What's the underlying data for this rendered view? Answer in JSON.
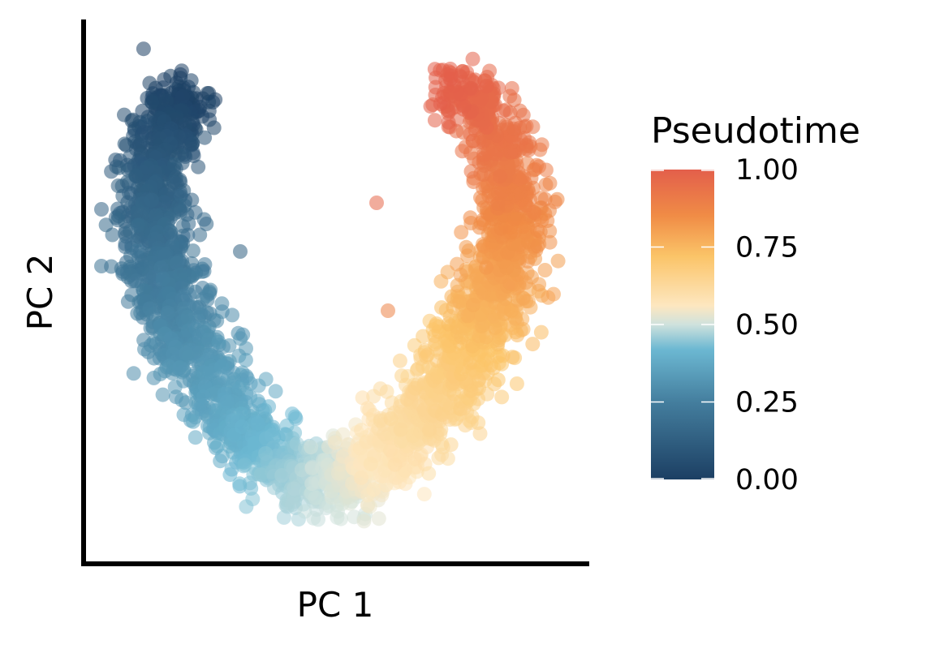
{
  "chart_data": {
    "type": "scatter",
    "title": "",
    "xlabel": "PC 1",
    "ylabel": "PC 2",
    "x_ticks_shown": false,
    "y_ticks_shown": false,
    "grid": false,
    "color_variable": "Pseudotime",
    "colorbar": {
      "title": "Pseudotime",
      "range": [
        0,
        1
      ],
      "tick_labels": [
        "0.00",
        "0.25",
        "0.50",
        "0.75",
        "1.00"
      ],
      "tick_values": [
        0,
        0.25,
        0.5,
        0.75,
        1
      ],
      "stops": [
        {
          "t": 0.0,
          "color": "#1c3f63"
        },
        {
          "t": 0.25,
          "color": "#447e9e"
        },
        {
          "t": 0.42,
          "color": "#6cb8d2"
        },
        {
          "t": 0.5,
          "color": "#cfe2dd"
        },
        {
          "t": 0.56,
          "color": "#fde7c0"
        },
        {
          "t": 0.72,
          "color": "#fbc468"
        },
        {
          "t": 0.85,
          "color": "#f08c46"
        },
        {
          "t": 1.0,
          "color": "#e35f4b"
        }
      ]
    },
    "point_count": 3000,
    "point_opacity": 0.55,
    "shape": "U-shaped curve: pseudotime 0.00 at upper-left, bottom of the U near 0.50, 1.00 at upper-right",
    "outliers": [
      {
        "pseudotime": 0.97
      },
      {
        "pseudotime": 0.88
      },
      {
        "pseudotime": 0.13
      }
    ]
  },
  "colors": {
    "axis": "#000000",
    "background": "#ffffff"
  }
}
